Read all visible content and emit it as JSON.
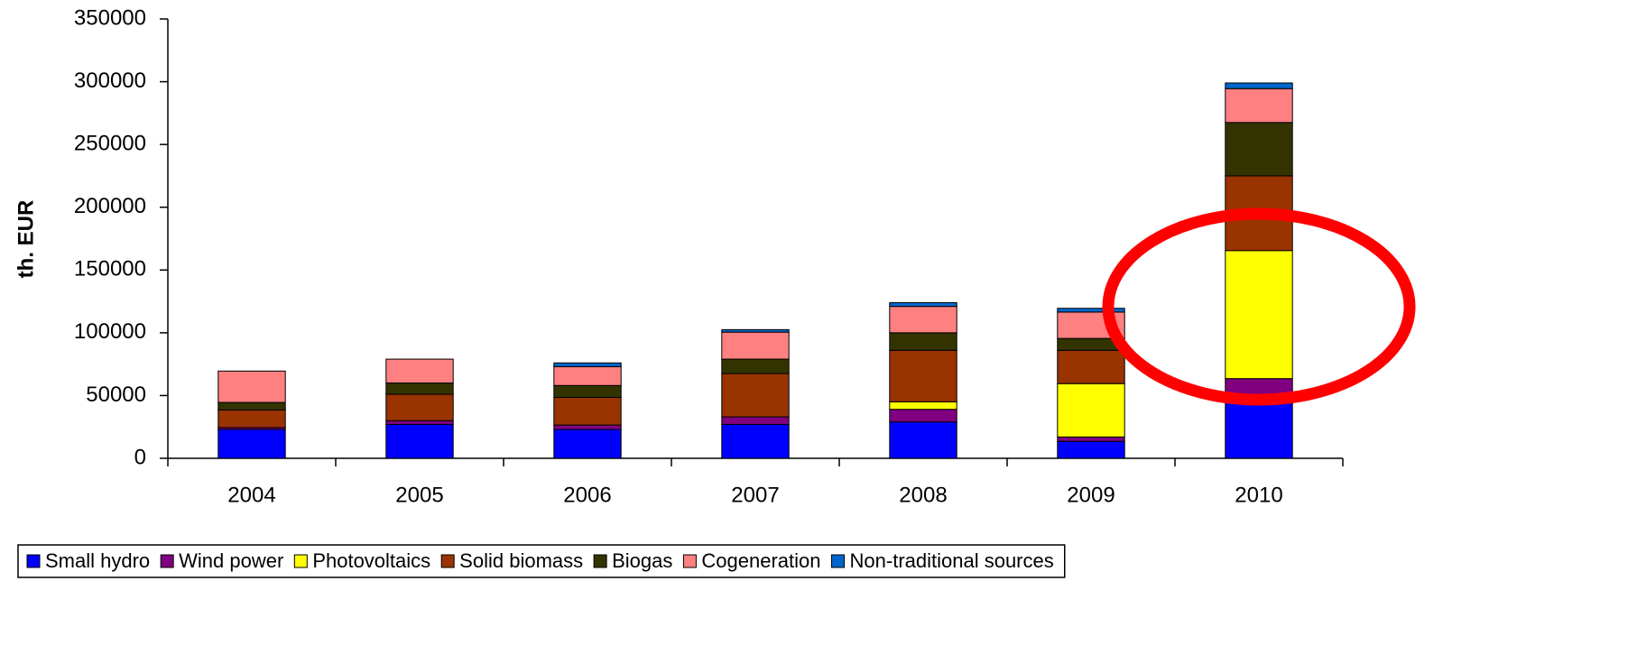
{
  "chart_data": {
    "type": "stacked_bar",
    "ylabel": "th. EUR",
    "categories": [
      "2004",
      "2005",
      "2006",
      "2007",
      "2008",
      "2009",
      "2010"
    ],
    "series": [
      {
        "name": "Small hydro",
        "color": "#0000ff",
        "values": [
          23000,
          27000,
          23000,
          27000,
          29000,
          13500,
          49000
        ]
      },
      {
        "name": "Wind power",
        "color": "#800080",
        "values": [
          1500,
          3000,
          3500,
          6000,
          10000,
          3500,
          14500
        ]
      },
      {
        "name": "Photovoltaics",
        "color": "#ffff00",
        "values": [
          0,
          0,
          0,
          0,
          6000,
          42500,
          102000
        ]
      },
      {
        "name": "Solid biomass",
        "color": "#993300",
        "values": [
          14000,
          21000,
          22000,
          34500,
          41000,
          26500,
          59500
        ]
      },
      {
        "name": "Biogas",
        "color": "#333300",
        "values": [
          6000,
          9000,
          9500,
          11500,
          14000,
          9500,
          42500
        ]
      },
      {
        "name": "Cogeneration",
        "color": "#ff8080",
        "values": [
          25000,
          19000,
          15000,
          21500,
          21000,
          21000,
          27000
        ]
      },
      {
        "name": "Non-traditional sources",
        "color": "#0066cc",
        "values": [
          0,
          0,
          3000,
          2000,
          3000,
          3000,
          4500
        ]
      }
    ],
    "ylim": [
      0,
      350000
    ],
    "yticks": [
      0,
      50000,
      100000,
      150000,
      200000,
      250000,
      300000,
      350000
    ],
    "legend": "bottom"
  }
}
